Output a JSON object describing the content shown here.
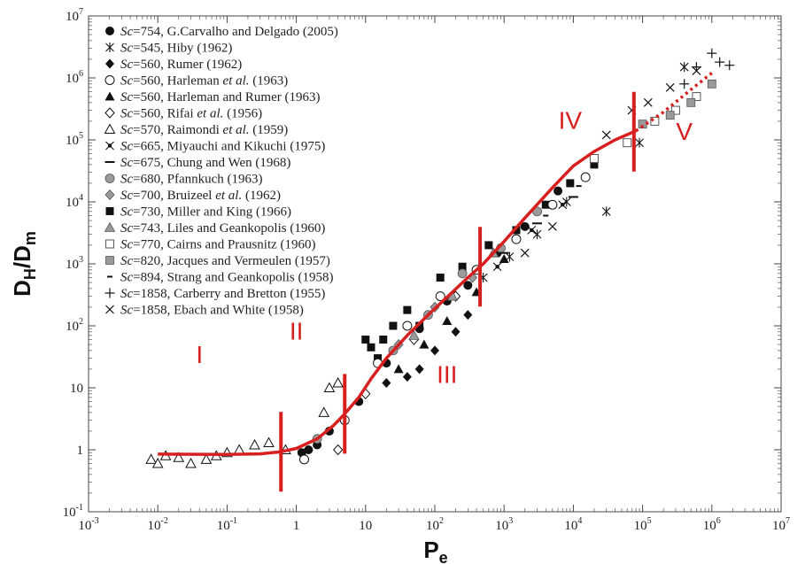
{
  "chart_data": {
    "type": "scatter",
    "xlabel": "P",
    "xlabel_sub": "e",
    "ylabel_main": "D",
    "ylabel_sub1": "H",
    "ylabel_slash": "/D",
    "ylabel_sub2": "m",
    "x_scale": "log",
    "y_scale": "log",
    "xlim": [
      0.001,
      10000000
    ],
    "ylim": [
      0.1,
      10000000
    ],
    "x_ticks": [
      {
        "value": 0.001,
        "base": "10",
        "exp": "-3"
      },
      {
        "value": 0.01,
        "base": "10",
        "exp": "-2"
      },
      {
        "value": 0.1,
        "base": "10",
        "exp": "-1"
      },
      {
        "value": 1,
        "base": "1",
        "exp": ""
      },
      {
        "value": 10,
        "base": "10",
        "exp": ""
      },
      {
        "value": 100,
        "base": "10",
        "exp": "2"
      },
      {
        "value": 1000,
        "base": "10",
        "exp": "3"
      },
      {
        "value": 10000,
        "base": "10",
        "exp": "4"
      },
      {
        "value": 100000,
        "base": "10",
        "exp": "5"
      },
      {
        "value": 1000000,
        "base": "10",
        "exp": "6"
      },
      {
        "value": 10000000,
        "base": "10",
        "exp": "7"
      }
    ],
    "y_ticks": [
      {
        "value": 0.1,
        "base": "10",
        "exp": "-1"
      },
      {
        "value": 1,
        "base": "1",
        "exp": ""
      },
      {
        "value": 10,
        "base": "10",
        "exp": ""
      },
      {
        "value": 100,
        "base": "10",
        "exp": "2"
      },
      {
        "value": 1000,
        "base": "10",
        "exp": "3"
      },
      {
        "value": 10000,
        "base": "10",
        "exp": "4"
      },
      {
        "value": 100000,
        "base": "10",
        "exp": "5"
      },
      {
        "value": 1000000,
        "base": "10",
        "exp": "6"
      },
      {
        "value": 10000000,
        "base": "10",
        "exp": "7"
      }
    ],
    "legend_position": "top-left",
    "legend": [
      {
        "marker": "filled-circle",
        "label": "Sc=754, G.Carvalho and Delgado (2005)"
      },
      {
        "marker": "asterisk",
        "label": "Sc=545, Hiby (1962)"
      },
      {
        "marker": "filled-diamond",
        "label": "Sc=560, Rumer (1962)"
      },
      {
        "marker": "open-circle",
        "label": "Sc=560, Harleman et al. (1963)"
      },
      {
        "marker": "filled-triangle",
        "label": "Sc=560, Harleman and Rumer (1963)"
      },
      {
        "marker": "open-diamond",
        "label": "Sc=560, Rifai et al. (1956)"
      },
      {
        "marker": "open-triangle",
        "label": "Sc=570, Raimondi et al. (1959)"
      },
      {
        "marker": "star",
        "label": "Sc=665, Miyauchi and Kikuchi (1975)"
      },
      {
        "marker": "dash",
        "label": "Sc=675, Chung and Wen (1968)"
      },
      {
        "marker": "gray-circle",
        "label": "Sc=680, Pfannkuch (1963)"
      },
      {
        "marker": "gray-diamond",
        "label": "Sc=700, Bruizeel et al. (1962)"
      },
      {
        "marker": "filled-square",
        "label": "Sc=730, Miller and King (1966)"
      },
      {
        "marker": "gray-triangle",
        "label": "Sc=743, Liles and Geankopolis (1960)"
      },
      {
        "marker": "open-square",
        "label": "Sc=770, Cairns and Prausnitz (1960)"
      },
      {
        "marker": "gray-square",
        "label": "Sc=820, Jacques and Vermeulen (1957)"
      },
      {
        "marker": "small-dash",
        "label": "Sc=894, Strang and Geankopolis (1958)"
      },
      {
        "marker": "plus",
        "label": "Sc=1858, Carberry and Bretton (1955)"
      },
      {
        "marker": "cross",
        "label": "Sc=1858, Ebach and White (1958)"
      }
    ],
    "curve": {
      "color": "#d81f1f",
      "solid": [
        [
          0.01,
          0.85
        ],
        [
          0.1,
          0.84
        ],
        [
          0.3,
          0.86
        ],
        [
          0.6,
          0.93
        ],
        [
          1,
          1.05
        ],
        [
          2,
          1.5
        ],
        [
          3.5,
          2.5
        ],
        [
          5,
          3.8
        ],
        [
          8,
          7
        ],
        [
          12,
          14
        ],
        [
          20,
          30
        ],
        [
          40,
          70
        ],
        [
          80,
          150
        ],
        [
          150,
          290
        ],
        [
          300,
          600
        ],
        [
          500,
          1000
        ],
        [
          1000,
          2300
        ],
        [
          2000,
          5500
        ],
        [
          5000,
          17000
        ],
        [
          10000,
          38000
        ],
        [
          20000,
          65000
        ],
        [
          40000,
          100000
        ],
        [
          80000,
          140000
        ]
      ],
      "dotted": [
        [
          80000,
          140000
        ],
        [
          200000,
          280000
        ],
        [
          500000,
          650000
        ],
        [
          1000000,
          1200000
        ]
      ]
    },
    "region_markers": [
      0.6,
      5,
      450,
      75000
    ],
    "region_labels": [
      {
        "text": "I",
        "x": 0.04,
        "y": 25
      },
      {
        "text": "II",
        "x": 1,
        "y": 60
      },
      {
        "text": "III",
        "x": 150,
        "y": 12
      },
      {
        "text": "IV",
        "x": 9000,
        "y": 150000
      },
      {
        "text": "V",
        "x": 400000,
        "y": 100000
      }
    ],
    "series": [
      {
        "marker": "open-triangle",
        "points": [
          [
            0.008,
            0.7
          ],
          [
            0.01,
            0.6
          ],
          [
            0.013,
            0.8
          ],
          [
            0.02,
            0.75
          ],
          [
            0.03,
            0.6
          ],
          [
            0.05,
            0.7
          ],
          [
            0.07,
            0.8
          ],
          [
            0.1,
            0.9
          ],
          [
            0.15,
            1.0
          ],
          [
            0.25,
            1.2
          ],
          [
            0.4,
            1.3
          ],
          [
            0.7,
            1.0
          ],
          [
            2.5,
            4
          ],
          [
            3,
            10
          ],
          [
            4,
            12
          ]
        ]
      },
      {
        "marker": "filled-circle",
        "points": [
          [
            1.2,
            0.9
          ],
          [
            1.5,
            1.0
          ],
          [
            2,
            1.2
          ],
          [
            3,
            2
          ],
          [
            8,
            6
          ],
          [
            20,
            25
          ],
          [
            60,
            90
          ],
          [
            150,
            250
          ],
          [
            300,
            450
          ],
          [
            800,
            1500
          ],
          [
            2000,
            4000
          ],
          [
            6000,
            15000
          ]
        ]
      },
      {
        "marker": "filled-square",
        "points": [
          [
            10,
            60
          ],
          [
            12,
            45
          ],
          [
            15,
            30
          ],
          [
            18,
            60
          ],
          [
            25,
            100
          ],
          [
            40,
            180
          ],
          [
            60,
            100
          ],
          [
            120,
            600
          ],
          [
            250,
            900
          ],
          [
            600,
            2000
          ],
          [
            1500,
            3500
          ],
          [
            4000,
            9000
          ],
          [
            9000,
            20000
          ],
          [
            20000,
            40000
          ]
        ]
      },
      {
        "marker": "filled-diamond",
        "points": [
          [
            20,
            12
          ],
          [
            40,
            15
          ],
          [
            60,
            20
          ],
          [
            100,
            40
          ],
          [
            200,
            80
          ],
          [
            300,
            150
          ]
        ]
      },
      {
        "marker": "filled-triangle",
        "points": [
          [
            30,
            20
          ],
          [
            70,
            50
          ],
          [
            150,
            120
          ],
          [
            400,
            350
          ],
          [
            1000,
            1200
          ]
        ]
      },
      {
        "marker": "open-circle",
        "points": [
          [
            1.3,
            0.7
          ],
          [
            5,
            3
          ],
          [
            15,
            25
          ],
          [
            40,
            100
          ],
          [
            120,
            300
          ],
          [
            400,
            800
          ],
          [
            1500,
            2500
          ],
          [
            5000,
            9000
          ],
          [
            15000,
            25000
          ]
        ]
      },
      {
        "marker": "open-diamond",
        "points": [
          [
            4,
            1.0
          ],
          [
            10,
            8
          ],
          [
            50,
            60
          ],
          [
            200,
            300
          ]
        ]
      },
      {
        "marker": "gray-circle",
        "points": [
          [
            2,
            1.5
          ],
          [
            25,
            40
          ],
          [
            80,
            150
          ],
          [
            250,
            700
          ],
          [
            900,
            1800
          ],
          [
            3000,
            7000
          ]
        ]
      },
      {
        "marker": "gray-diamond",
        "points": [
          [
            30,
            50
          ],
          [
            100,
            200
          ],
          [
            350,
            600
          ]
        ]
      },
      {
        "marker": "gray-triangle",
        "points": [
          [
            50,
            70
          ],
          [
            180,
            300
          ],
          [
            700,
            1500
          ]
        ]
      },
      {
        "marker": "open-square",
        "points": [
          [
            20000,
            50000
          ],
          [
            60000,
            90000
          ],
          [
            150000,
            200000
          ],
          [
            300000,
            300000
          ],
          [
            600000,
            500000
          ]
        ]
      },
      {
        "marker": "gray-square",
        "points": [
          [
            100000,
            180000
          ],
          [
            250000,
            250000
          ],
          [
            500000,
            400000
          ],
          [
            1000000,
            800000
          ]
        ]
      },
      {
        "marker": "asterisk",
        "points": [
          [
            500,
            600
          ],
          [
            1200,
            1300
          ],
          [
            3000,
            3000
          ],
          [
            8000,
            10000
          ],
          [
            30000,
            7000
          ],
          [
            90000,
            90000
          ],
          [
            400000,
            1500000
          ]
        ]
      },
      {
        "marker": "star",
        "points": [
          [
            800,
            900
          ],
          [
            2500,
            3500
          ],
          [
            7000,
            9000
          ]
        ]
      },
      {
        "marker": "plus",
        "points": [
          [
            600000,
            1500000
          ],
          [
            1000000,
            2500000
          ],
          [
            1300000,
            1800000
          ],
          [
            1800000,
            1600000
          ],
          [
            400000,
            800000
          ]
        ]
      },
      {
        "marker": "cross",
        "points": [
          [
            30000,
            120000
          ],
          [
            70000,
            300000
          ],
          [
            120000,
            400000
          ],
          [
            250000,
            700000
          ],
          [
            600000,
            1300000
          ],
          [
            2000,
            1500
          ],
          [
            5000,
            4000
          ]
        ]
      },
      {
        "marker": "dash",
        "points": [
          [
            1000,
            1500
          ],
          [
            3000,
            4500
          ],
          [
            10000,
            12000
          ]
        ]
      },
      {
        "marker": "small-dash",
        "points": [
          [
            4000,
            6000
          ],
          [
            12000,
            18000
          ]
        ]
      }
    ]
  }
}
